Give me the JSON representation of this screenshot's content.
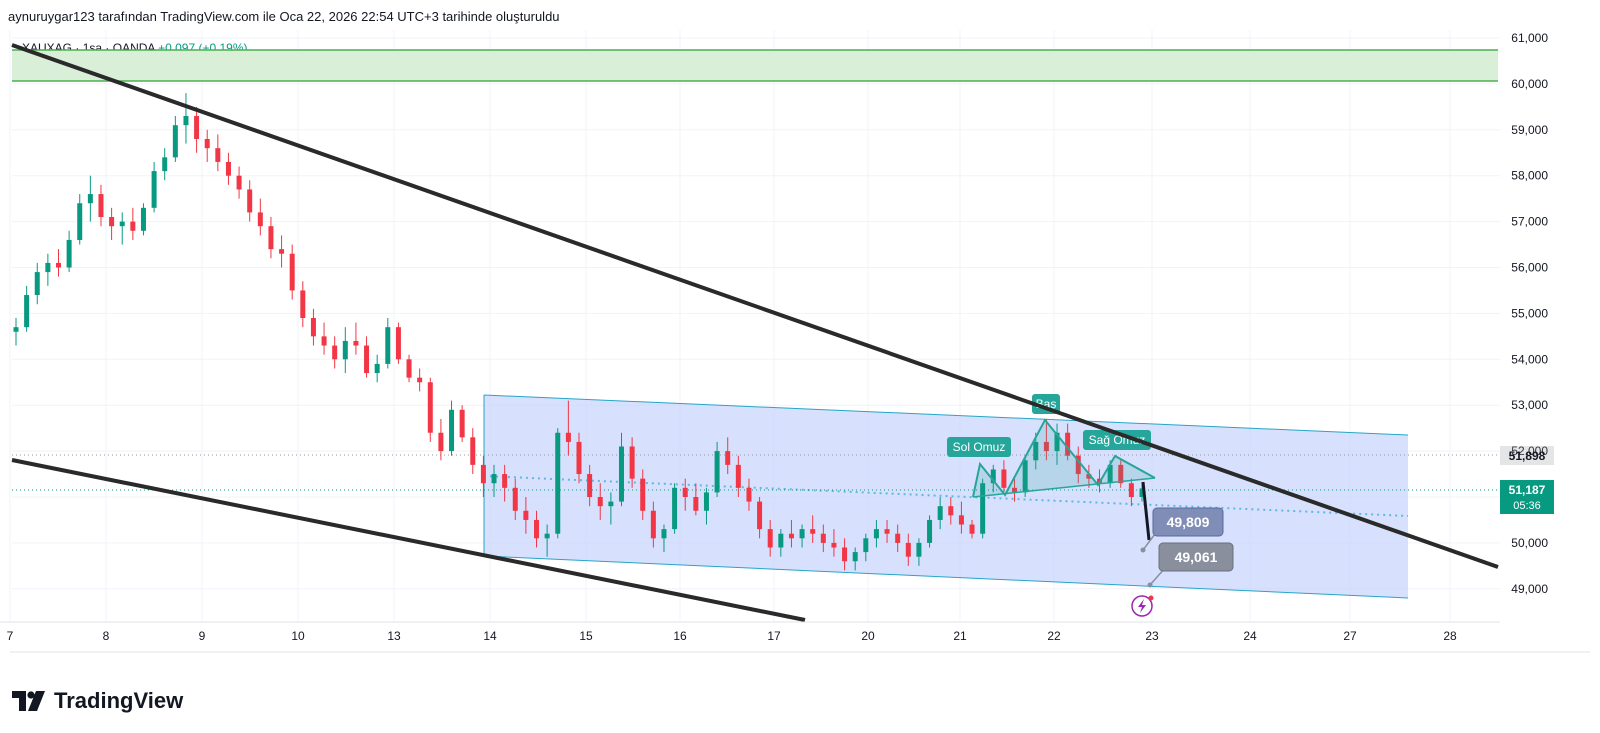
{
  "header": {
    "caption": "aynuruygar123 tarafından TradingView.com ile Oca 22, 2026 22:54 UTC+3 tarihinde oluşturuldu"
  },
  "legend": {
    "symbol": "XAUXAG",
    "sep1": "·",
    "interval": "1sa",
    "sep2": "·",
    "source": "OANDA",
    "change": "+0,097 (+0,19%)"
  },
  "footer": {
    "logo_icon": "tradingview-logo-icon",
    "brand": "TradingView"
  },
  "colors": {
    "up": "#089981",
    "down": "#f23645",
    "trend": "#2a2a2a",
    "channel_fill": "#c9d6fb",
    "channel_line": "#26a5c9",
    "zone_fill": "#d9efd8",
    "zone_line": "#4caf50",
    "pattern": "#26a69a",
    "label_gray": "#8a8f9e"
  },
  "chart_data": {
    "type": "candlestick",
    "y_axis": {
      "ticks": [
        "61,000",
        "60,000",
        "59,000",
        "58,000",
        "57,000",
        "56,000",
        "55,000",
        "54,000",
        "53,000",
        "52,000",
        "51,000",
        "50,000",
        "49,000"
      ],
      "tick_values": [
        61000,
        60000,
        59000,
        58000,
        57000,
        56000,
        55000,
        54000,
        53000,
        52000,
        51000,
        50000,
        49000
      ],
      "range": [
        48300,
        61300
      ]
    },
    "x_axis": {
      "ticks": [
        "7",
        "8",
        "9",
        "10",
        "13",
        "14",
        "15",
        "16",
        "17",
        "20",
        "21",
        "22",
        "23",
        "24",
        "27",
        "28"
      ]
    },
    "price_labels": [
      {
        "id": "last-close",
        "text": "51,898",
        "value": 51898
      },
      {
        "id": "current",
        "text": "51,187",
        "value": 51187
      },
      {
        "id": "countdown",
        "text": "05:36"
      }
    ],
    "target_labels": [
      {
        "id": "target-1",
        "text": "49,809",
        "value": 49809
      },
      {
        "id": "target-2",
        "text": "49,061",
        "value": 49061
      }
    ],
    "pattern": {
      "name": "head-and-shoulders",
      "left_shoulder": "Sol Omuz",
      "head": "Baş",
      "right_shoulder": "Sağ Omuz"
    },
    "resistance_zone": [
      60050,
      60700
    ],
    "candles_approx": [
      [
        54600,
        54900,
        54300,
        54700
      ],
      [
        54700,
        55600,
        54600,
        55400
      ],
      [
        55400,
        56100,
        55200,
        55900
      ],
      [
        55900,
        56300,
        55600,
        56100
      ],
      [
        56100,
        56400,
        55800,
        56000
      ],
      [
        56000,
        56800,
        55900,
        56600
      ],
      [
        56600,
        57600,
        56500,
        57400
      ],
      [
        57400,
        58000,
        57000,
        57600
      ],
      [
        57600,
        57800,
        56900,
        57100
      ],
      [
        57100,
        57300,
        56600,
        56900
      ],
      [
        56900,
        57200,
        56500,
        57000
      ],
      [
        57000,
        57300,
        56600,
        56800
      ],
      [
        56800,
        57400,
        56700,
        57300
      ],
      [
        57300,
        58300,
        57200,
        58100
      ],
      [
        58100,
        58600,
        57900,
        58400
      ],
      [
        58400,
        59300,
        58300,
        59100
      ],
      [
        59100,
        59800,
        58700,
        59300
      ],
      [
        59300,
        59500,
        58500,
        58800
      ],
      [
        58800,
        59000,
        58300,
        58600
      ],
      [
        58600,
        58900,
        58100,
        58300
      ],
      [
        58300,
        58500,
        57800,
        58000
      ],
      [
        58000,
        58200,
        57500,
        57700
      ],
      [
        57700,
        57900,
        57000,
        57200
      ],
      [
        57200,
        57500,
        56700,
        56900
      ],
      [
        56900,
        57100,
        56200,
        56400
      ],
      [
        56400,
        56700,
        56000,
        56300
      ],
      [
        56300,
        56500,
        55300,
        55500
      ],
      [
        55500,
        55700,
        54700,
        54900
      ],
      [
        54900,
        55100,
        54300,
        54500
      ],
      [
        54500,
        54800,
        54100,
        54300
      ],
      [
        54300,
        54500,
        53800,
        54000
      ],
      [
        54000,
        54700,
        53700,
        54400
      ],
      [
        54400,
        54800,
        54100,
        54300
      ],
      [
        54300,
        54500,
        53600,
        53700
      ],
      [
        53700,
        54100,
        53500,
        53900
      ],
      [
        53900,
        54900,
        53800,
        54700
      ],
      [
        54700,
        54800,
        53900,
        54000
      ],
      [
        54000,
        54100,
        53500,
        53600
      ],
      [
        53600,
        53800,
        53300,
        53500
      ],
      [
        53500,
        53600,
        52200,
        52400
      ],
      [
        52400,
        52700,
        51800,
        52000
      ],
      [
        52000,
        53100,
        51900,
        52900
      ],
      [
        52900,
        53000,
        52200,
        52300
      ],
      [
        52300,
        52500,
        51500,
        51700
      ],
      [
        51700,
        51900,
        51000,
        51300
      ],
      [
        51300,
        51700,
        51000,
        51500
      ],
      [
        51500,
        51700,
        50900,
        51200
      ],
      [
        51200,
        51400,
        50500,
        50700
      ],
      [
        50700,
        51000,
        50200,
        50500
      ],
      [
        50500,
        50700,
        49900,
        50100
      ],
      [
        50100,
        50400,
        49700,
        50200
      ],
      [
        50200,
        52500,
        50100,
        52400
      ],
      [
        52400,
        53100,
        51900,
        52200
      ],
      [
        52200,
        52400,
        51300,
        51500
      ],
      [
        51500,
        51700,
        50800,
        51000
      ],
      [
        51000,
        51300,
        50500,
        50800
      ],
      [
        50800,
        51100,
        50400,
        50900
      ],
      [
        50900,
        52400,
        50800,
        52100
      ],
      [
        52100,
        52300,
        51200,
        51400
      ],
      [
        51400,
        51600,
        50500,
        50700
      ],
      [
        50700,
        50900,
        49900,
        50100
      ],
      [
        50100,
        50400,
        49800,
        50300
      ],
      [
        50300,
        51300,
        50200,
        51200
      ],
      [
        51200,
        51400,
        50700,
        51000
      ],
      [
        51000,
        51300,
        50600,
        50700
      ],
      [
        50700,
        51200,
        50400,
        51100
      ],
      [
        51100,
        52200,
        51000,
        52000
      ],
      [
        52000,
        52300,
        51500,
        51700
      ],
      [
        51700,
        51900,
        51000,
        51200
      ],
      [
        51200,
        51400,
        50700,
        50900
      ],
      [
        50900,
        51000,
        50100,
        50300
      ],
      [
        50300,
        50500,
        49700,
        49900
      ],
      [
        49900,
        50300,
        49700,
        50200
      ],
      [
        50200,
        50500,
        49900,
        50100
      ],
      [
        50100,
        50400,
        49900,
        50300
      ],
      [
        50300,
        50600,
        50000,
        50200
      ],
      [
        50200,
        50400,
        49800,
        50000
      ],
      [
        50000,
        50300,
        49700,
        49900
      ],
      [
        49900,
        50100,
        49400,
        49600
      ],
      [
        49600,
        49900,
        49400,
        49800
      ],
      [
        49800,
        50200,
        49600,
        50100
      ],
      [
        50100,
        50500,
        49900,
        50300
      ],
      [
        50300,
        50500,
        50000,
        50200
      ],
      [
        50200,
        50400,
        49800,
        50000
      ],
      [
        50000,
        50200,
        49500,
        49700
      ],
      [
        49700,
        50100,
        49500,
        50000
      ],
      [
        50000,
        50600,
        49900,
        50500
      ],
      [
        50500,
        51000,
        50300,
        50800
      ],
      [
        50800,
        51000,
        50400,
        50600
      ],
      [
        50600,
        50900,
        50200,
        50400
      ],
      [
        50400,
        50500,
        50100,
        50200
      ],
      [
        50200,
        51400,
        50100,
        51300
      ],
      [
        51300,
        51700,
        51100,
        51600
      ],
      [
        51600,
        51800,
        51100,
        51200
      ],
      [
        51200,
        51400,
        50900,
        51100
      ],
      [
        51100,
        51900,
        51000,
        51800
      ],
      [
        51800,
        52400,
        51600,
        52200
      ],
      [
        52200,
        52700,
        51800,
        52000
      ],
      [
        52000,
        52600,
        51700,
        52400
      ],
      [
        52400,
        52600,
        51800,
        51900
      ],
      [
        51900,
        52100,
        51300,
        51500
      ],
      [
        51500,
        51700,
        51200,
        51400
      ],
      [
        51400,
        51600,
        51100,
        51300
      ],
      [
        51300,
        51800,
        51200,
        51700
      ],
      [
        51700,
        51800,
        51200,
        51300
      ],
      [
        51300,
        51400,
        50800,
        51000
      ],
      [
        51000,
        51300,
        50900,
        51187
      ]
    ]
  }
}
